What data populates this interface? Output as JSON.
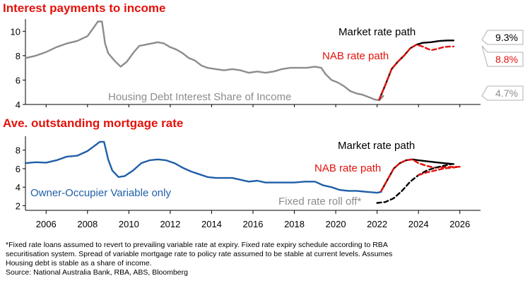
{
  "chart_data": [
    {
      "type": "line",
      "title": "Interest payments to income",
      "ylim": [
        4,
        11
      ],
      "yticks": [
        4,
        6,
        8,
        10
      ],
      "xlim": [
        2005,
        2027
      ],
      "series": [
        {
          "name": "Housing Debt Interest Share of Income",
          "color": "#8c8c8c",
          "style": "solid",
          "x": [
            2005.0,
            2005.5,
            2006.0,
            2006.5,
            2007.0,
            2007.5,
            2008.0,
            2008.3,
            2008.5,
            2008.7,
            2008.85,
            2009.0,
            2009.3,
            2009.6,
            2009.9,
            2010.2,
            2010.5,
            2010.8,
            2011.1,
            2011.4,
            2011.7,
            2012.0,
            2012.3,
            2012.6,
            2012.9,
            2013.2,
            2013.5,
            2013.8,
            2014.2,
            2014.6,
            2015.0,
            2015.4,
            2015.8,
            2016.2,
            2016.6,
            2017.0,
            2017.4,
            2017.8,
            2018.2,
            2018.6,
            2019.0,
            2019.3,
            2019.5,
            2019.8,
            2020.1,
            2020.4,
            2020.7,
            2021.0,
            2021.3,
            2021.6,
            2021.9,
            2022.1,
            2022.3
          ],
          "values": [
            7.8,
            8.0,
            8.3,
            8.7,
            9.0,
            9.2,
            9.6,
            10.3,
            10.8,
            10.8,
            9.0,
            8.2,
            7.6,
            7.1,
            7.5,
            8.2,
            8.8,
            8.9,
            9.0,
            9.1,
            9.0,
            8.7,
            8.5,
            8.2,
            7.8,
            7.6,
            7.2,
            7.0,
            6.9,
            6.8,
            6.9,
            6.8,
            6.6,
            6.7,
            6.6,
            6.7,
            6.9,
            7.0,
            7.0,
            7.0,
            7.1,
            7.0,
            6.5,
            6.0,
            5.8,
            5.5,
            5.1,
            4.9,
            4.8,
            4.6,
            4.4,
            4.35,
            4.7
          ]
        },
        {
          "name": "Market rate path",
          "color": "#000000",
          "style": "solid",
          "x": [
            2022.1,
            2022.4,
            2022.7,
            2023.0,
            2023.3,
            2023.6,
            2023.9,
            2024.2,
            2024.6,
            2025.0,
            2025.4,
            2025.7
          ],
          "values": [
            4.4,
            5.6,
            6.9,
            7.5,
            8.0,
            8.6,
            8.9,
            9.05,
            9.1,
            9.2,
            9.25,
            9.25
          ]
        },
        {
          "name": "NAB rate path",
          "color": "#e3120b",
          "style": "dashed",
          "x": [
            2022.1,
            2022.4,
            2022.7,
            2023.0,
            2023.3,
            2023.6,
            2023.9,
            2024.2,
            2024.6,
            2024.9,
            2025.2,
            2025.5,
            2025.7
          ],
          "values": [
            4.4,
            5.6,
            6.9,
            7.5,
            8.0,
            8.6,
            8.9,
            8.75,
            8.45,
            8.55,
            8.7,
            8.75,
            8.75
          ]
        }
      ],
      "annotations": [
        {
          "text": "Market rate path",
          "color": "#000000"
        },
        {
          "text": "NAB rate path",
          "color": "#e3120b"
        },
        {
          "text": "Housing Debt Interest Share of Income",
          "color": "#8c8c8c"
        }
      ],
      "end_labels": [
        {
          "text": "9.3%",
          "value": 9.3,
          "color": "#000000"
        },
        {
          "text": "8.8%",
          "value": 8.8,
          "color": "#e3120b"
        },
        {
          "text": "4.7%",
          "value": 4.7,
          "color": "#8c8c8c"
        }
      ]
    },
    {
      "type": "line",
      "title": "Ave. outstanding mortgage rate",
      "ylim": [
        1.5,
        9.5
      ],
      "yticks": [
        2,
        4,
        6,
        8
      ],
      "xlim": [
        2005,
        2027
      ],
      "xticks": [
        "2006",
        "2008",
        "2010",
        "2012",
        "2014",
        "2016",
        "2018",
        "2020",
        "2022",
        "2024",
        "2026"
      ],
      "series": [
        {
          "name": "Owner-Occupier Variable only",
          "color": "#1f5fa8",
          "style": "solid",
          "x": [
            2005.0,
            2005.5,
            2006.0,
            2006.5,
            2007.0,
            2007.5,
            2008.0,
            2008.3,
            2008.6,
            2008.8,
            2009.0,
            2009.2,
            2009.5,
            2009.8,
            2010.2,
            2010.6,
            2011.0,
            2011.4,
            2011.8,
            2012.2,
            2012.6,
            2013.0,
            2013.4,
            2013.8,
            2014.2,
            2014.6,
            2015.0,
            2015.4,
            2015.8,
            2016.2,
            2016.6,
            2017.0,
            2017.5,
            2018.0,
            2018.5,
            2019.0,
            2019.4,
            2019.8,
            2020.2,
            2020.6,
            2021.0,
            2021.5,
            2022.0,
            2022.2
          ],
          "values": [
            6.6,
            6.7,
            6.65,
            6.9,
            7.3,
            7.4,
            7.9,
            8.4,
            8.9,
            8.9,
            7.0,
            5.8,
            5.1,
            5.2,
            5.8,
            6.6,
            6.9,
            7.0,
            6.9,
            6.6,
            6.1,
            5.7,
            5.4,
            5.1,
            5.0,
            5.0,
            5.0,
            4.8,
            4.6,
            4.7,
            4.5,
            4.5,
            4.5,
            4.5,
            4.6,
            4.6,
            4.2,
            4.0,
            3.7,
            3.6,
            3.6,
            3.5,
            3.4,
            3.5
          ]
        },
        {
          "name": "Market rate path",
          "color": "#000000",
          "style": "solid",
          "x": [
            2022.2,
            2022.5,
            2022.8,
            2023.1,
            2023.4,
            2023.7,
            2024.0,
            2024.4,
            2024.8,
            2025.2,
            2025.7
          ],
          "values": [
            3.6,
            4.8,
            6.0,
            6.6,
            6.9,
            7.0,
            6.9,
            6.8,
            6.7,
            6.6,
            6.5
          ]
        },
        {
          "name": "NAB rate path",
          "color": "#e3120b",
          "style": "dashed",
          "x": [
            2022.2,
            2022.5,
            2022.8,
            2023.1,
            2023.4,
            2023.7,
            2024.0,
            2024.4,
            2024.8,
            2025.2,
            2025.7,
            2026.0
          ],
          "values": [
            3.6,
            4.8,
            6.0,
            6.6,
            6.9,
            7.0,
            6.6,
            6.3,
            6.1,
            6.15,
            6.2,
            6.2
          ]
        },
        {
          "name": "Fixed rate roll off* (market)",
          "color": "#000000",
          "style": "dashed",
          "x": [
            2022.0,
            2022.4,
            2022.8,
            2023.2,
            2023.6,
            2024.0,
            2024.4,
            2024.8,
            2025.2,
            2025.6
          ],
          "values": [
            2.3,
            2.4,
            2.8,
            3.6,
            4.6,
            5.3,
            5.8,
            6.1,
            6.3,
            6.5
          ]
        },
        {
          "name": "Fixed rate roll off* (NAB)",
          "color": "#e3120b",
          "style": "dashed",
          "x": [
            2024.0,
            2024.4,
            2024.8,
            2025.2,
            2025.6,
            2026.0
          ],
          "values": [
            5.3,
            5.6,
            5.8,
            6.0,
            6.1,
            6.2
          ]
        }
      ],
      "annotations": [
        {
          "text": "Market rate path",
          "color": "#000000"
        },
        {
          "text": "NAB rate path",
          "color": "#e3120b"
        },
        {
          "text": "Fixed rate roll off*",
          "color": "#8c8c8c"
        },
        {
          "text": "Owner-Occupier Variable only",
          "color": "#1f5fa8"
        }
      ]
    }
  ],
  "footnote": {
    "lines": [
      "*Fixed rate loans assumed to revert to prevailing variable rate at expiry. Fixed rate expiry schedule according to RBA",
      "  securitisation system. Spread of variable mortgage rate to policy rate assumed to be stable at current levels. Assumes",
      "  Housing debt is stable as a share of income.",
      "Source: National Australia Bank, RBA, ABS, Bloomberg"
    ]
  }
}
